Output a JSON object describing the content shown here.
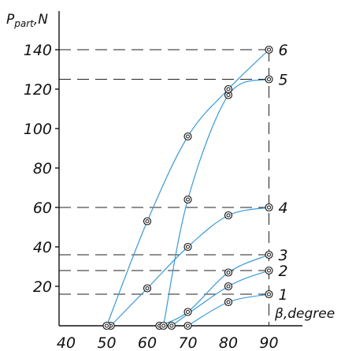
{
  "chart_data": {
    "type": "line",
    "xlabel": "β,degree",
    "ylabel": "P_part,N",
    "ylabel_main": "P",
    "ylabel_sub": "part",
    "ylabel_unit": ",N",
    "xlim": [
      40,
      90
    ],
    "ylim": [
      0,
      150
    ],
    "x_ticks": [
      "40",
      "50",
      "60",
      "70",
      "80",
      "90"
    ],
    "y_ticks": [
      "20",
      "40",
      "60",
      "80",
      "100",
      "120",
      "140"
    ],
    "grid": false,
    "series": [
      {
        "name": "1",
        "points": [
          [
            70,
            0
          ],
          [
            80,
            12
          ],
          [
            90,
            16
          ]
        ]
      },
      {
        "name": "2",
        "points": [
          [
            66,
            0
          ],
          [
            80,
            20
          ],
          [
            90,
            28
          ]
        ]
      },
      {
        "name": "3",
        "points": [
          [
            63,
            0
          ],
          [
            70,
            7
          ],
          [
            80,
            27
          ],
          [
            90,
            36
          ]
        ]
      },
      {
        "name": "4",
        "points": [
          [
            51,
            0
          ],
          [
            60,
            19
          ],
          [
            70,
            40
          ],
          [
            80,
            56
          ],
          [
            90,
            60
          ]
        ]
      },
      {
        "name": "5",
        "points": [
          [
            64,
            0
          ],
          [
            70,
            64
          ],
          [
            80,
            117
          ],
          [
            90,
            125
          ]
        ]
      },
      {
        "name": "6",
        "points": [
          [
            50,
            0
          ],
          [
            60,
            53
          ],
          [
            70,
            96
          ],
          [
            80,
            120
          ],
          [
            90,
            140
          ]
        ]
      }
    ]
  }
}
